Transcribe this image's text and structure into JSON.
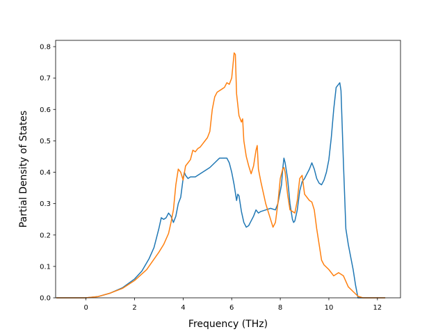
{
  "chart_data": {
    "type": "line",
    "title": "",
    "xlabel": "Frequency (THz)",
    "ylabel": "Partial Density of States",
    "xlim": [
      -1.25,
      12.95
    ],
    "ylim": [
      0.0,
      0.82
    ],
    "x_ticks": [
      0,
      2,
      4,
      6,
      8,
      10,
      12
    ],
    "x_tick_labels": [
      "0",
      "2",
      "4",
      "6",
      "8",
      "10",
      "12"
    ],
    "y_ticks": [
      0.0,
      0.1,
      0.2,
      0.3,
      0.4,
      0.5,
      0.6,
      0.7,
      0.8
    ],
    "y_tick_labels": [
      "0.0",
      "0.1",
      "0.2",
      "0.3",
      "0.4",
      "0.5",
      "0.6",
      "0.7",
      "0.8"
    ],
    "grid": false,
    "legend": "none",
    "series": [
      {
        "color": "#1f77b4",
        "x": [
          -1.2,
          -0.5,
          0.0,
          0.5,
          1.0,
          1.5,
          2.0,
          2.3,
          2.6,
          2.8,
          2.9,
          3.0,
          3.1,
          3.2,
          3.3,
          3.4,
          3.5,
          3.6,
          3.7,
          3.8,
          3.9,
          4.0,
          4.05,
          4.1,
          4.2,
          4.3,
          4.5,
          4.7,
          4.9,
          5.1,
          5.3,
          5.5,
          5.7,
          5.8,
          5.9,
          6.0,
          6.1,
          6.2,
          6.25,
          6.3,
          6.35,
          6.4,
          6.5,
          6.6,
          6.7,
          6.8,
          6.9,
          7.0,
          7.1,
          7.2,
          7.4,
          7.6,
          7.8,
          7.9,
          8.0,
          8.05,
          8.1,
          8.15,
          8.2,
          8.3,
          8.4,
          8.5,
          8.55,
          8.6,
          8.7,
          8.8,
          8.9,
          9.0,
          9.2,
          9.3,
          9.4,
          9.5,
          9.6,
          9.7,
          9.8,
          9.9,
          10.0,
          10.1,
          10.2,
          10.3,
          10.4,
          10.45,
          10.5,
          10.6,
          10.7,
          10.8,
          10.9,
          11.0,
          11.1,
          11.2,
          11.3,
          11.5,
          12.3
        ],
        "y": [
          0.0,
          0.0,
          0.0,
          0.004,
          0.015,
          0.032,
          0.06,
          0.085,
          0.125,
          0.16,
          0.19,
          0.22,
          0.255,
          0.25,
          0.255,
          0.27,
          0.26,
          0.24,
          0.26,
          0.3,
          0.32,
          0.38,
          0.4,
          0.39,
          0.38,
          0.385,
          0.385,
          0.395,
          0.405,
          0.415,
          0.43,
          0.445,
          0.445,
          0.445,
          0.43,
          0.4,
          0.36,
          0.31,
          0.33,
          0.325,
          0.3,
          0.275,
          0.24,
          0.225,
          0.23,
          0.245,
          0.26,
          0.28,
          0.27,
          0.275,
          0.28,
          0.285,
          0.28,
          0.3,
          0.34,
          0.36,
          0.41,
          0.445,
          0.43,
          0.38,
          0.3,
          0.25,
          0.24,
          0.245,
          0.28,
          0.34,
          0.37,
          0.38,
          0.41,
          0.43,
          0.41,
          0.38,
          0.365,
          0.36,
          0.375,
          0.4,
          0.44,
          0.51,
          0.6,
          0.67,
          0.68,
          0.685,
          0.66,
          0.43,
          0.22,
          0.17,
          0.13,
          0.09,
          0.04,
          0.0,
          0.0,
          0.0,
          0.0
        ]
      },
      {
        "color": "#ff7f0e",
        "x": [
          -1.2,
          -0.5,
          0.0,
          0.5,
          1.0,
          1.5,
          2.0,
          2.5,
          3.0,
          3.2,
          3.4,
          3.5,
          3.6,
          3.7,
          3.8,
          3.9,
          4.0,
          4.1,
          4.2,
          4.3,
          4.4,
          4.5,
          4.6,
          4.7,
          4.8,
          4.9,
          5.0,
          5.1,
          5.2,
          5.3,
          5.4,
          5.5,
          5.6,
          5.7,
          5.8,
          5.9,
          6.0,
          6.1,
          6.15,
          6.2,
          6.3,
          6.4,
          6.45,
          6.5,
          6.6,
          6.7,
          6.8,
          6.9,
          7.0,
          7.05,
          7.1,
          7.2,
          7.4,
          7.6,
          7.7,
          7.8,
          7.9,
          8.0,
          8.1,
          8.15,
          8.2,
          8.3,
          8.4,
          8.6,
          8.7,
          8.8,
          8.9,
          9.0,
          9.1,
          9.2,
          9.3,
          9.4,
          9.5,
          9.6,
          9.7,
          9.8,
          10.0,
          10.2,
          10.4,
          10.6,
          10.8,
          11.0,
          11.2,
          11.4,
          12.3
        ],
        "y": [
          0.0,
          0.0,
          0.0,
          0.004,
          0.015,
          0.03,
          0.055,
          0.09,
          0.145,
          0.17,
          0.205,
          0.24,
          0.28,
          0.36,
          0.41,
          0.4,
          0.375,
          0.42,
          0.43,
          0.44,
          0.47,
          0.465,
          0.475,
          0.48,
          0.49,
          0.5,
          0.51,
          0.53,
          0.6,
          0.64,
          0.655,
          0.66,
          0.665,
          0.67,
          0.685,
          0.68,
          0.7,
          0.78,
          0.775,
          0.65,
          0.58,
          0.56,
          0.57,
          0.5,
          0.45,
          0.42,
          0.395,
          0.42,
          0.47,
          0.485,
          0.41,
          0.37,
          0.3,
          0.25,
          0.225,
          0.24,
          0.3,
          0.38,
          0.41,
          0.415,
          0.4,
          0.33,
          0.28,
          0.27,
          0.31,
          0.38,
          0.39,
          0.33,
          0.32,
          0.31,
          0.305,
          0.28,
          0.22,
          0.17,
          0.12,
          0.105,
          0.09,
          0.07,
          0.08,
          0.07,
          0.035,
          0.02,
          0.005,
          0.0,
          0.0
        ]
      }
    ]
  }
}
